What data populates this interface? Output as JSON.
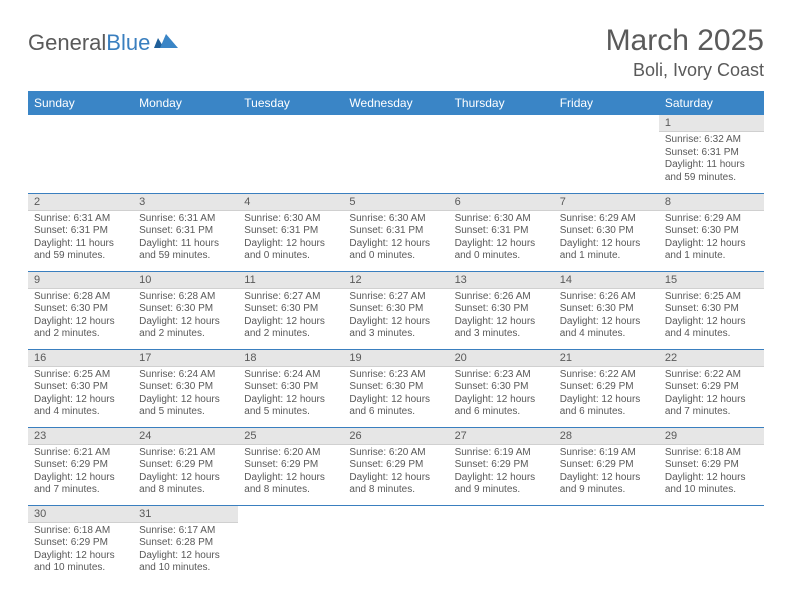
{
  "brand": {
    "part1": "General",
    "part2": "Blue"
  },
  "title": "March 2025",
  "location": "Boli, Ivory Coast",
  "colors": {
    "header_bg": "#3a85c6",
    "header_text": "#ffffff",
    "daynum_bg": "#e6e6e6",
    "text": "#595959",
    "row_border": "#3a7fbf",
    "logo_gray": "#5a5a5a",
    "logo_blue": "#3a7fbf"
  },
  "day_headers": [
    "Sunday",
    "Monday",
    "Tuesday",
    "Wednesday",
    "Thursday",
    "Friday",
    "Saturday"
  ],
  "weeks": [
    [
      null,
      null,
      null,
      null,
      null,
      null,
      {
        "n": "1",
        "sr": "Sunrise: 6:32 AM",
        "ss": "Sunset: 6:31 PM",
        "dl": "Daylight: 11 hours and 59 minutes."
      }
    ],
    [
      {
        "n": "2",
        "sr": "Sunrise: 6:31 AM",
        "ss": "Sunset: 6:31 PM",
        "dl": "Daylight: 11 hours and 59 minutes."
      },
      {
        "n": "3",
        "sr": "Sunrise: 6:31 AM",
        "ss": "Sunset: 6:31 PM",
        "dl": "Daylight: 11 hours and 59 minutes."
      },
      {
        "n": "4",
        "sr": "Sunrise: 6:30 AM",
        "ss": "Sunset: 6:31 PM",
        "dl": "Daylight: 12 hours and 0 minutes."
      },
      {
        "n": "5",
        "sr": "Sunrise: 6:30 AM",
        "ss": "Sunset: 6:31 PM",
        "dl": "Daylight: 12 hours and 0 minutes."
      },
      {
        "n": "6",
        "sr": "Sunrise: 6:30 AM",
        "ss": "Sunset: 6:31 PM",
        "dl": "Daylight: 12 hours and 0 minutes."
      },
      {
        "n": "7",
        "sr": "Sunrise: 6:29 AM",
        "ss": "Sunset: 6:30 PM",
        "dl": "Daylight: 12 hours and 1 minute."
      },
      {
        "n": "8",
        "sr": "Sunrise: 6:29 AM",
        "ss": "Sunset: 6:30 PM",
        "dl": "Daylight: 12 hours and 1 minute."
      }
    ],
    [
      {
        "n": "9",
        "sr": "Sunrise: 6:28 AM",
        "ss": "Sunset: 6:30 PM",
        "dl": "Daylight: 12 hours and 2 minutes."
      },
      {
        "n": "10",
        "sr": "Sunrise: 6:28 AM",
        "ss": "Sunset: 6:30 PM",
        "dl": "Daylight: 12 hours and 2 minutes."
      },
      {
        "n": "11",
        "sr": "Sunrise: 6:27 AM",
        "ss": "Sunset: 6:30 PM",
        "dl": "Daylight: 12 hours and 2 minutes."
      },
      {
        "n": "12",
        "sr": "Sunrise: 6:27 AM",
        "ss": "Sunset: 6:30 PM",
        "dl": "Daylight: 12 hours and 3 minutes."
      },
      {
        "n": "13",
        "sr": "Sunrise: 6:26 AM",
        "ss": "Sunset: 6:30 PM",
        "dl": "Daylight: 12 hours and 3 minutes."
      },
      {
        "n": "14",
        "sr": "Sunrise: 6:26 AM",
        "ss": "Sunset: 6:30 PM",
        "dl": "Daylight: 12 hours and 4 minutes."
      },
      {
        "n": "15",
        "sr": "Sunrise: 6:25 AM",
        "ss": "Sunset: 6:30 PM",
        "dl": "Daylight: 12 hours and 4 minutes."
      }
    ],
    [
      {
        "n": "16",
        "sr": "Sunrise: 6:25 AM",
        "ss": "Sunset: 6:30 PM",
        "dl": "Daylight: 12 hours and 4 minutes."
      },
      {
        "n": "17",
        "sr": "Sunrise: 6:24 AM",
        "ss": "Sunset: 6:30 PM",
        "dl": "Daylight: 12 hours and 5 minutes."
      },
      {
        "n": "18",
        "sr": "Sunrise: 6:24 AM",
        "ss": "Sunset: 6:30 PM",
        "dl": "Daylight: 12 hours and 5 minutes."
      },
      {
        "n": "19",
        "sr": "Sunrise: 6:23 AM",
        "ss": "Sunset: 6:30 PM",
        "dl": "Daylight: 12 hours and 6 minutes."
      },
      {
        "n": "20",
        "sr": "Sunrise: 6:23 AM",
        "ss": "Sunset: 6:30 PM",
        "dl": "Daylight: 12 hours and 6 minutes."
      },
      {
        "n": "21",
        "sr": "Sunrise: 6:22 AM",
        "ss": "Sunset: 6:29 PM",
        "dl": "Daylight: 12 hours and 6 minutes."
      },
      {
        "n": "22",
        "sr": "Sunrise: 6:22 AM",
        "ss": "Sunset: 6:29 PM",
        "dl": "Daylight: 12 hours and 7 minutes."
      }
    ],
    [
      {
        "n": "23",
        "sr": "Sunrise: 6:21 AM",
        "ss": "Sunset: 6:29 PM",
        "dl": "Daylight: 12 hours and 7 minutes."
      },
      {
        "n": "24",
        "sr": "Sunrise: 6:21 AM",
        "ss": "Sunset: 6:29 PM",
        "dl": "Daylight: 12 hours and 8 minutes."
      },
      {
        "n": "25",
        "sr": "Sunrise: 6:20 AM",
        "ss": "Sunset: 6:29 PM",
        "dl": "Daylight: 12 hours and 8 minutes."
      },
      {
        "n": "26",
        "sr": "Sunrise: 6:20 AM",
        "ss": "Sunset: 6:29 PM",
        "dl": "Daylight: 12 hours and 8 minutes."
      },
      {
        "n": "27",
        "sr": "Sunrise: 6:19 AM",
        "ss": "Sunset: 6:29 PM",
        "dl": "Daylight: 12 hours and 9 minutes."
      },
      {
        "n": "28",
        "sr": "Sunrise: 6:19 AM",
        "ss": "Sunset: 6:29 PM",
        "dl": "Daylight: 12 hours and 9 minutes."
      },
      {
        "n": "29",
        "sr": "Sunrise: 6:18 AM",
        "ss": "Sunset: 6:29 PM",
        "dl": "Daylight: 12 hours and 10 minutes."
      }
    ],
    [
      {
        "n": "30",
        "sr": "Sunrise: 6:18 AM",
        "ss": "Sunset: 6:29 PM",
        "dl": "Daylight: 12 hours and 10 minutes."
      },
      {
        "n": "31",
        "sr": "Sunrise: 6:17 AM",
        "ss": "Sunset: 6:28 PM",
        "dl": "Daylight: 12 hours and 10 minutes."
      },
      null,
      null,
      null,
      null,
      null
    ]
  ]
}
